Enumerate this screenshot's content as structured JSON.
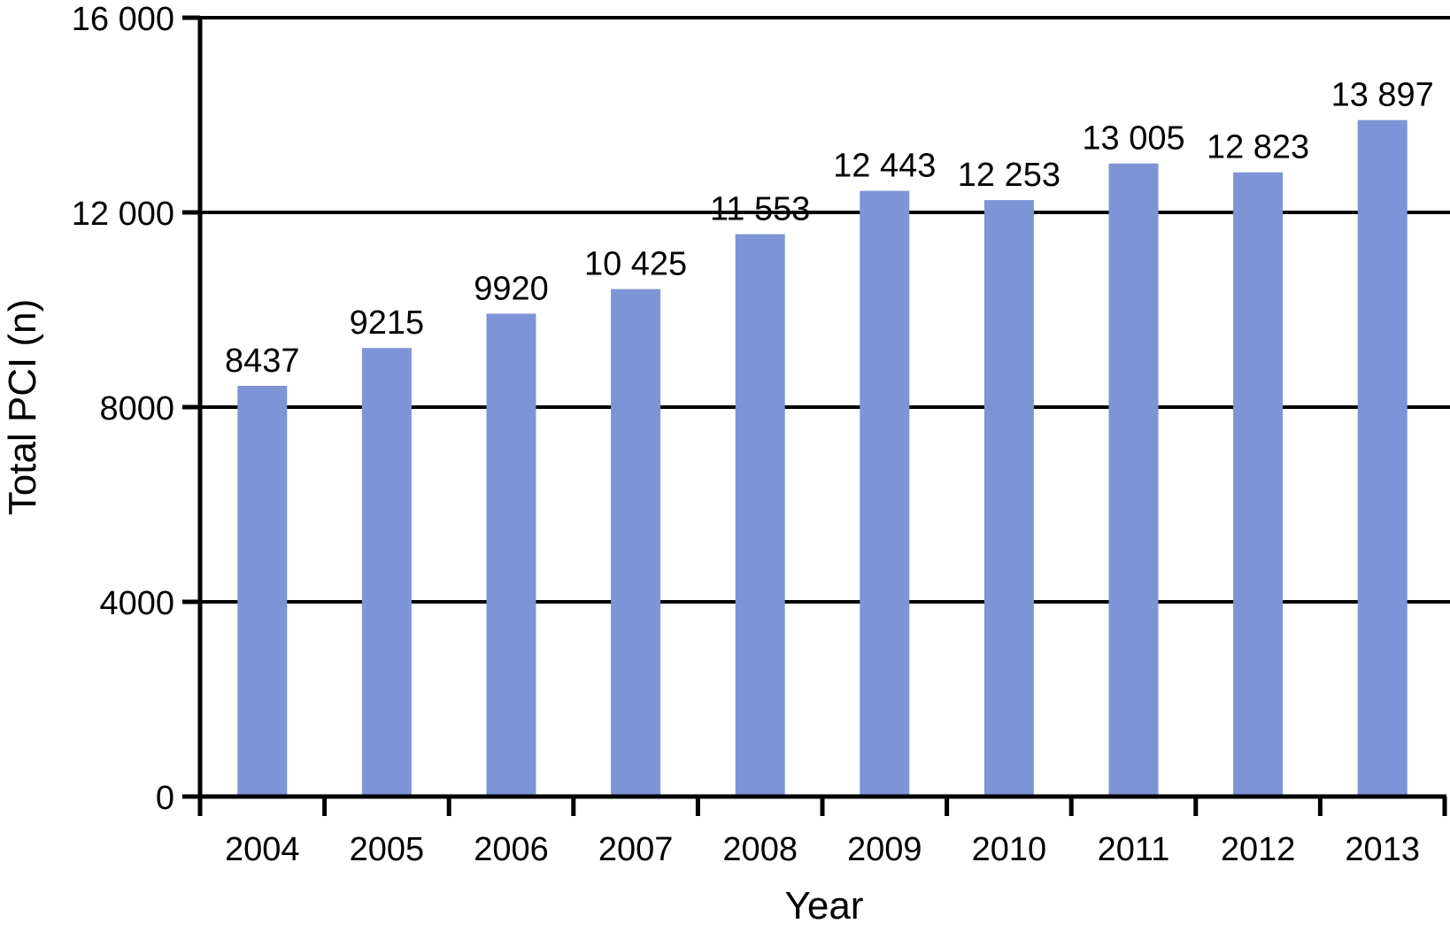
{
  "chart_data": {
    "type": "bar",
    "title": "",
    "xlabel": "Year",
    "ylabel": "Total PCI (n)",
    "categories": [
      "2004",
      "2005",
      "2006",
      "2007",
      "2008",
      "2009",
      "2010",
      "2011",
      "2012",
      "2013"
    ],
    "values": [
      8437,
      9215,
      9920,
      10425,
      11553,
      12443,
      12253,
      13005,
      12823,
      13897
    ],
    "value_labels": [
      "8437",
      "9215",
      "9920",
      "10 425",
      "11 553",
      "12 443",
      "12 253",
      "13 005",
      "12 823",
      "13 897"
    ],
    "ylim": [
      0,
      16000
    ],
    "yticks": [
      {
        "value": 0,
        "label": "0"
      },
      {
        "value": 4000,
        "label": "4000"
      },
      {
        "value": 8000,
        "label": "8000"
      },
      {
        "value": 12000,
        "label": "12 000"
      },
      {
        "value": 16000,
        "label": "16 000"
      }
    ],
    "grid": "horizontal",
    "legend": "none",
    "bar_color": "#7D94D6",
    "axis_color": "#000000",
    "background": "#FFFFFF"
  }
}
